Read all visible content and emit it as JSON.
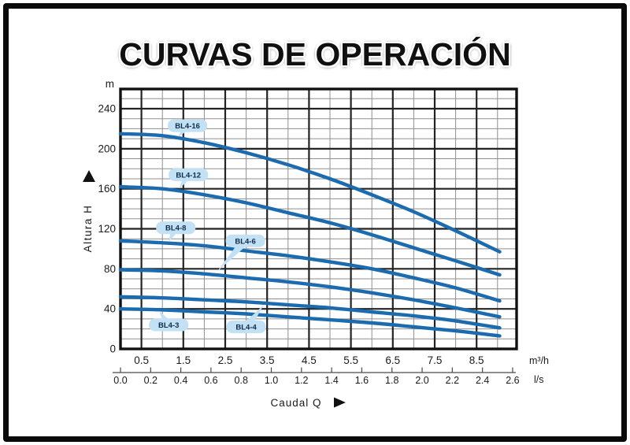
{
  "title": "CURVAS DE OPERACIÓN",
  "colors": {
    "curve": "#1B6BAE",
    "tag_fill": "#C2E1F4",
    "tag_text": "#122B4D",
    "grid_major": "#232323",
    "grid_minor": "#8F8F8F",
    "plot_border": "#111111",
    "ruler": "#4A4A4A",
    "text": "#1A1A1A"
  },
  "axes": {
    "y": {
      "unit": "m",
      "label": "Altura H",
      "ticks": [
        "0",
        "40",
        "80",
        "120",
        "160",
        "200",
        "240"
      ]
    },
    "x_primary": {
      "unit": "m³/h",
      "ticks": [
        "0.5",
        "1.5",
        "2.5",
        "3.5",
        "4.5",
        "5.5",
        "6.5",
        "7.5",
        "8.5"
      ]
    },
    "x_secondary": {
      "unit": "l/s",
      "ticks": [
        "0.0",
        "0.2",
        "0.4",
        "0.6",
        "0.8",
        "1.0",
        "1.2",
        "1.4",
        "1.6",
        "1.8",
        "2.0",
        "2.2",
        "2.4",
        "2.6"
      ]
    },
    "x_label": "Caudal Q"
  },
  "chart_data": {
    "type": "line",
    "title": "CURVAS DE OPERACIÓN",
    "xlabel": "Caudal Q",
    "ylabel": "Altura H",
    "x_units": [
      "m³/h",
      "l/s"
    ],
    "y_unit": "m",
    "xlim": [
      0,
      9.45
    ],
    "ylim": [
      0,
      260
    ],
    "grid": "on",
    "x_major_step": 1.0,
    "x_minor_step": 0.5,
    "y_major_step": 40,
    "y_minor_step": 10,
    "series": [
      {
        "name": "BL4-16",
        "points": [
          [
            0,
            215
          ],
          [
            1,
            213
          ],
          [
            2,
            206
          ],
          [
            3,
            196
          ],
          [
            4,
            184
          ],
          [
            5,
            170
          ],
          [
            6,
            154
          ],
          [
            7,
            137
          ],
          [
            8,
            118
          ],
          [
            9.05,
            97
          ]
        ]
      },
      {
        "name": "BL4-12",
        "points": [
          [
            0,
            162
          ],
          [
            1,
            160
          ],
          [
            2,
            154
          ],
          [
            3,
            146
          ],
          [
            4,
            136
          ],
          [
            5,
            126
          ],
          [
            6,
            114
          ],
          [
            7,
            101
          ],
          [
            8,
            88
          ],
          [
            9.05,
            74
          ]
        ]
      },
      {
        "name": "BL4-8",
        "points": [
          [
            0,
            108
          ],
          [
            1,
            106
          ],
          [
            2,
            103
          ],
          [
            3,
            98
          ],
          [
            4,
            93
          ],
          [
            5,
            87
          ],
          [
            6,
            80
          ],
          [
            7,
            71
          ],
          [
            8,
            61
          ],
          [
            9.05,
            48
          ]
        ]
      },
      {
        "name": "BL4-6",
        "points": [
          [
            0,
            79
          ],
          [
            1,
            78
          ],
          [
            2,
            75
          ],
          [
            3,
            71
          ],
          [
            4,
            67
          ],
          [
            5,
            62
          ],
          [
            6,
            56
          ],
          [
            7,
            49
          ],
          [
            8,
            41
          ],
          [
            9.05,
            32
          ]
        ]
      },
      {
        "name": "BL4-4",
        "points": [
          [
            0,
            52
          ],
          [
            1,
            51
          ],
          [
            2,
            49
          ],
          [
            3,
            47
          ],
          [
            4,
            44
          ],
          [
            5,
            41
          ],
          [
            6,
            37
          ],
          [
            7,
            33
          ],
          [
            8,
            28
          ],
          [
            9.05,
            21
          ]
        ]
      },
      {
        "name": "BL4-3",
        "points": [
          [
            0,
            40
          ],
          [
            1,
            39
          ],
          [
            2,
            37
          ],
          [
            3,
            35
          ],
          [
            4,
            32
          ],
          [
            5,
            29
          ],
          [
            6,
            26
          ],
          [
            7,
            22
          ],
          [
            8,
            18
          ],
          [
            9.05,
            13
          ]
        ]
      }
    ],
    "labels": [
      {
        "text": "BL4-16",
        "tag": [
          1.6,
          223
        ],
        "tip": [
          1.38,
          212
        ]
      },
      {
        "text": "BL4-12",
        "tag": [
          1.62,
          174
        ],
        "tip": [
          1.4,
          160
        ]
      },
      {
        "text": "BL4-8",
        "tag": [
          1.32,
          121
        ],
        "tip": [
          1.15,
          107
        ]
      },
      {
        "text": "BL4-6",
        "tag": [
          2.98,
          108
        ],
        "tip": [
          2.3,
          77
        ]
      },
      {
        "text": "BL4-3",
        "tag": [
          1.15,
          24
        ],
        "tip": [
          0.92,
          38
        ]
      },
      {
        "text": "BL4-4",
        "tag": [
          3.0,
          22
        ],
        "tip": [
          3.42,
          44
        ]
      }
    ]
  }
}
